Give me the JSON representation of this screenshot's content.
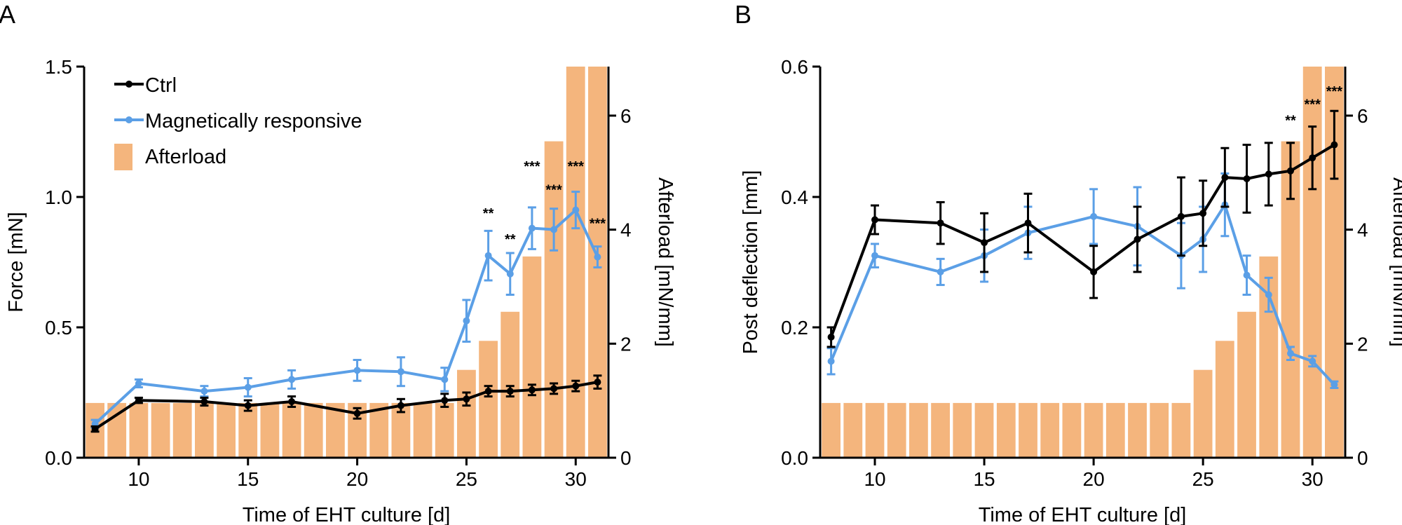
{
  "colors": {
    "ctrl": "#000000",
    "magnetic": "#5b9fe6",
    "afterload": "#f4b57d"
  },
  "legend": {
    "ctrl": "Ctrl",
    "magnetic": "Magnetically responsive",
    "afterload": "Afterload"
  },
  "chart_data": [
    {
      "panel": "A",
      "type": "line",
      "xlabel": "Time of EHT culture [d]",
      "ylabel": "Force [mN]",
      "y2label": "Afterload [mN/mm]",
      "xlim": [
        7.5,
        31.5
      ],
      "ylim": [
        0,
        1.5
      ],
      "y2lim": [
        0,
        6.86
      ],
      "xticks": [
        "10",
        "15",
        "20",
        "25",
        "30"
      ],
      "yticks": [
        "0.0",
        "0.5",
        "1.0",
        "1.5"
      ],
      "y2ticks": [
        "0",
        "2",
        "4",
        "6"
      ],
      "afterload_bars": {
        "days": [
          8,
          9,
          10,
          11,
          12,
          13,
          14,
          15,
          16,
          17,
          18,
          19,
          20,
          21,
          22,
          23,
          24,
          25,
          26,
          27,
          28,
          29,
          30,
          31
        ],
        "values": [
          0.96,
          0.96,
          0.96,
          0.96,
          0.96,
          0.96,
          0.96,
          0.96,
          0.96,
          0.96,
          0.96,
          0.96,
          0.96,
          0.96,
          0.96,
          0.96,
          0.96,
          1.54,
          2.05,
          2.56,
          3.53,
          5.55,
          6.86,
          6.86
        ]
      },
      "series": [
        {
          "name": "Ctrl",
          "x": [
            8,
            10,
            13,
            15,
            17,
            20,
            22,
            24,
            25,
            26,
            27,
            28,
            29,
            30,
            31
          ],
          "y": [
            0.11,
            0.22,
            0.215,
            0.2,
            0.215,
            0.17,
            0.2,
            0.22,
            0.225,
            0.255,
            0.255,
            0.26,
            0.265,
            0.275,
            0.29
          ],
          "err": [
            0.01,
            0.01,
            0.015,
            0.02,
            0.02,
            0.02,
            0.025,
            0.025,
            0.025,
            0.02,
            0.02,
            0.02,
            0.02,
            0.02,
            0.025
          ]
        },
        {
          "name": "Magnetically responsive",
          "x": [
            8,
            10,
            13,
            15,
            17,
            20,
            22,
            24,
            25,
            26,
            27,
            28,
            29,
            30,
            31
          ],
          "y": [
            0.13,
            0.285,
            0.255,
            0.27,
            0.3,
            0.335,
            0.33,
            0.3,
            0.525,
            0.775,
            0.705,
            0.88,
            0.875,
            0.95,
            0.77
          ],
          "err": [
            0.015,
            0.015,
            0.02,
            0.035,
            0.035,
            0.04,
            0.055,
            0.045,
            0.08,
            0.095,
            0.08,
            0.08,
            0.08,
            0.07,
            0.04
          ]
        }
      ],
      "significance": [
        {
          "x": 26,
          "label": "**",
          "y": 0.92
        },
        {
          "x": 27,
          "label": "**",
          "y": 0.82
        },
        {
          "x": 28,
          "label": "***",
          "y": 1.1
        },
        {
          "x": 29,
          "label": "***",
          "y": 1.01
        },
        {
          "x": 30,
          "label": "***",
          "y": 1.1
        },
        {
          "x": 31,
          "label": "***",
          "y": 0.88
        }
      ]
    },
    {
      "panel": "B",
      "type": "line",
      "xlabel": "Time of EHT culture [d]",
      "ylabel": "Post deflection [mm]",
      "y2label": "Afterload [mN/mm]",
      "xlim": [
        7.5,
        31.5
      ],
      "ylim": [
        0,
        0.6
      ],
      "y2lim": [
        0,
        6.86
      ],
      "xticks": [
        "10",
        "15",
        "20",
        "25",
        "30"
      ],
      "yticks": [
        "0.0",
        "0.2",
        "0.4",
        "0.6"
      ],
      "y2ticks": [
        "0",
        "2",
        "4",
        "6"
      ],
      "afterload_bars": {
        "days": [
          8,
          9,
          10,
          11,
          12,
          13,
          14,
          15,
          16,
          17,
          18,
          19,
          20,
          21,
          22,
          23,
          24,
          25,
          26,
          27,
          28,
          29,
          30,
          31
        ],
        "values": [
          0.96,
          0.96,
          0.96,
          0.96,
          0.96,
          0.96,
          0.96,
          0.96,
          0.96,
          0.96,
          0.96,
          0.96,
          0.96,
          0.96,
          0.96,
          0.96,
          0.96,
          1.54,
          2.05,
          2.56,
          3.53,
          5.55,
          6.86,
          6.86
        ]
      },
      "series": [
        {
          "name": "Ctrl",
          "x": [
            8,
            10,
            13,
            15,
            17,
            20,
            22,
            24,
            25,
            26,
            27,
            28,
            29,
            30,
            31
          ],
          "y": [
            0.185,
            0.365,
            0.36,
            0.33,
            0.36,
            0.285,
            0.335,
            0.37,
            0.375,
            0.43,
            0.428,
            0.435,
            0.44,
            0.46,
            0.48
          ],
          "err": [
            0.015,
            0.022,
            0.032,
            0.045,
            0.045,
            0.04,
            0.05,
            0.06,
            0.05,
            0.045,
            0.052,
            0.048,
            0.043,
            0.048,
            0.052
          ]
        },
        {
          "name": "Magnetically responsive",
          "x": [
            8,
            10,
            13,
            15,
            17,
            20,
            22,
            24,
            25,
            26,
            27,
            28,
            29,
            30,
            31
          ],
          "y": [
            0.148,
            0.31,
            0.285,
            0.31,
            0.345,
            0.37,
            0.355,
            0.31,
            0.335,
            0.388,
            0.28,
            0.25,
            0.16,
            0.148,
            0.112
          ],
          "err": [
            0.02,
            0.018,
            0.02,
            0.04,
            0.04,
            0.042,
            0.06,
            0.05,
            0.05,
            0.048,
            0.03,
            0.026,
            0.01,
            0.008,
            0.005
          ]
        }
      ],
      "significance": [
        {
          "x": 29,
          "label": "**",
          "y": 0.51
        },
        {
          "x": 30,
          "label": "***",
          "y": 0.535
        },
        {
          "x": 31,
          "label": "***",
          "y": 0.555
        }
      ]
    }
  ]
}
